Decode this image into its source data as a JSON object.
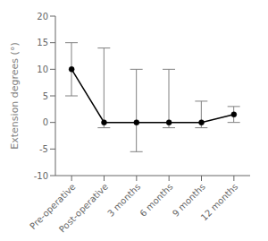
{
  "chart_data": {
    "type": "line",
    "categories": [
      "Pre-operative",
      "Post-operative",
      "3 months",
      "6 months",
      "9 months",
      "12 months"
    ],
    "values": [
      10,
      0,
      0,
      0,
      0,
      1.5
    ],
    "upper_whiskers": [
      15,
      14,
      10,
      10,
      4,
      3
    ],
    "lower_whiskers": [
      5,
      -1,
      -5.5,
      -1,
      -1,
      0
    ],
    "ylabel": "Extension degrees (°)",
    "ylim": [
      -10,
      20
    ],
    "yticks": [
      -10,
      -5,
      0,
      5,
      10,
      15,
      20
    ],
    "color": "#000000",
    "marker": "circle"
  }
}
